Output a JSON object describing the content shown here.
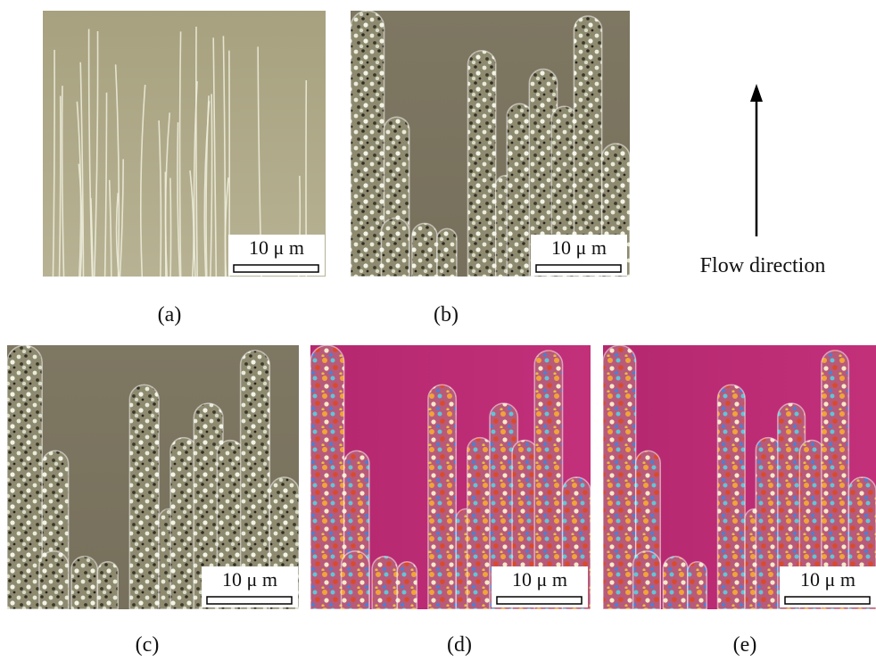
{
  "panels": [
    {
      "label": "(a)",
      "scale_bar": "10 μ m"
    },
    {
      "label": "(b)",
      "scale_bar": "10 μ m"
    },
    {
      "label": "(c)",
      "scale_bar": "10 μ m"
    },
    {
      "label": "(d)",
      "scale_bar": "10 μ m"
    },
    {
      "label": "(e)",
      "scale_bar": "10 μ m"
    }
  ],
  "flow_label": "Flow direction"
}
